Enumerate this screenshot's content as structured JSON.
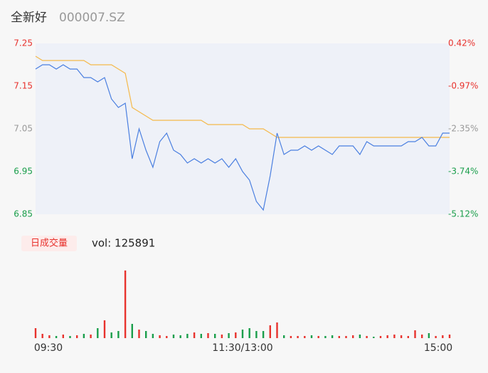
{
  "chart_data": {
    "type": "line",
    "title": "全新好",
    "subtitle": "000007.SZ",
    "x": [
      0,
      4,
      8,
      12,
      16,
      20,
      24,
      28,
      32,
      36,
      40,
      44,
      48,
      52,
      56,
      60,
      64,
      68,
      72,
      76,
      80,
      84,
      88,
      92,
      96,
      100,
      104,
      108,
      112,
      116,
      120,
      124,
      128,
      132,
      136,
      140,
      144,
      148,
      152,
      156,
      160,
      164,
      168,
      172,
      176,
      180,
      184,
      188,
      192,
      196,
      200,
      204,
      208,
      212,
      216,
      220,
      224,
      228,
      232,
      236,
      240
    ],
    "xlim": [
      0,
      240
    ],
    "xticks": [
      {
        "value": 0,
        "label": "09:30"
      },
      {
        "value": 120,
        "label": "11:30/13:00"
      },
      {
        "value": 240,
        "label": "15:00"
      }
    ],
    "ylim": [
      6.85,
      7.25
    ],
    "yticks": [
      7.25,
      7.15,
      7.05,
      6.95,
      6.85
    ],
    "ytick_colors": [
      "#e8322d",
      "#e8322d",
      "#999999",
      "#1a9e4b",
      "#1a9e4b"
    ],
    "y2lim": [
      -5.12,
      0.42
    ],
    "y2ticks": [
      {
        "value": 0.42,
        "label": "0.42%"
      },
      {
        "value": -0.97,
        "label": "-0.97%"
      },
      {
        "value": -2.35,
        "label": "-2.35%"
      },
      {
        "value": -3.74,
        "label": "-3.74%"
      },
      {
        "value": -5.12,
        "label": "-5.12%"
      }
    ],
    "series": [
      {
        "name": "price",
        "color": "#4a7fe0",
        "values": [
          7.19,
          7.2,
          7.2,
          7.19,
          7.2,
          7.19,
          7.19,
          7.17,
          7.17,
          7.16,
          7.17,
          7.12,
          7.1,
          7.11,
          6.98,
          7.05,
          7.0,
          6.96,
          7.02,
          7.04,
          7.0,
          6.99,
          6.97,
          6.98,
          6.97,
          6.98,
          6.97,
          6.98,
          6.96,
          6.98,
          6.95,
          6.93,
          6.88,
          6.86,
          6.94,
          7.04,
          6.99,
          7.0,
          7.0,
          7.01,
          7.0,
          7.01,
          7.0,
          6.99,
          7.01,
          7.01,
          7.01,
          6.99,
          7.02,
          7.01,
          7.01,
          7.01,
          7.01,
          7.01,
          7.02,
          7.02,
          7.03,
          7.01,
          7.01,
          7.04,
          7.04
        ]
      },
      {
        "name": "average",
        "color": "#f5b94a",
        "values": [
          7.22,
          7.21,
          7.21,
          7.21,
          7.21,
          7.21,
          7.21,
          7.21,
          7.2,
          7.2,
          7.2,
          7.2,
          7.19,
          7.18,
          7.1,
          7.09,
          7.08,
          7.07,
          7.07,
          7.07,
          7.07,
          7.07,
          7.07,
          7.07,
          7.07,
          7.06,
          7.06,
          7.06,
          7.06,
          7.06,
          7.06,
          7.05,
          7.05,
          7.05,
          7.04,
          7.03,
          7.03,
          7.03,
          7.03,
          7.03,
          7.03,
          7.03,
          7.03,
          7.03,
          7.03,
          7.03,
          7.03,
          7.03,
          7.03,
          7.03,
          7.03,
          7.03,
          7.03,
          7.03,
          7.03,
          7.03,
          7.03,
          7.03,
          7.03,
          7.03,
          7.03
        ]
      }
    ],
    "volume": {
      "legend": "日成交量",
      "label": "vol: 125891",
      "up_color": "#e8322d",
      "down_color": "#1a9e4b",
      "values": [
        14,
        6,
        4,
        3,
        5,
        3,
        4,
        6,
        5,
        14,
        25,
        8,
        10,
        95,
        20,
        12,
        10,
        6,
        4,
        3,
        5,
        4,
        6,
        8,
        6,
        7,
        6,
        5,
        7,
        8,
        12,
        14,
        10,
        10,
        18,
        22,
        4,
        3,
        3,
        3,
        4,
        3,
        3,
        4,
        3,
        3,
        4,
        5,
        3,
        2,
        3,
        4,
        5,
        4,
        3,
        11,
        5,
        7,
        3,
        4,
        5
      ]
    }
  }
}
